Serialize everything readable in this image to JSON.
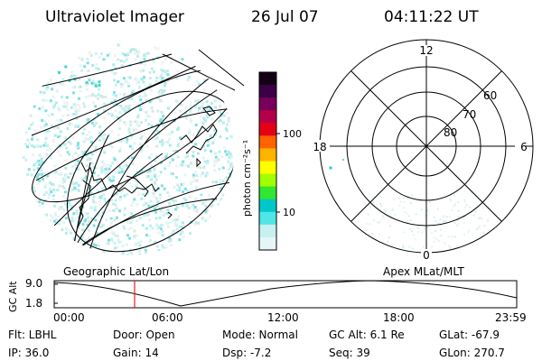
{
  "header": {
    "instrument": "Ultraviolet Imager",
    "date": "26 Jul 07",
    "time": "04:11:22 UT"
  },
  "colorbar": {
    "unit_label": "photon cm⁻²s⁻¹",
    "ticks": [
      "100",
      "10"
    ],
    "colors": [
      "#140014",
      "#3c0046",
      "#78005a",
      "#b4004b",
      "#e60014",
      "#ff6400",
      "#ffb400",
      "#ffff00",
      "#a0ff00",
      "#32e632",
      "#00c8c8",
      "#50e6e6",
      "#c8f0f0",
      "#e6f5f5"
    ]
  },
  "left_panel": {
    "label": "Geographic Lat/Lon"
  },
  "right_panel": {
    "label": "Apex MLat/MLT",
    "mlt_labels": {
      "top": "12",
      "bottom": "0",
      "left": "18",
      "right": "6"
    },
    "lat_labels": [
      "60",
      "70",
      "80"
    ]
  },
  "timeline": {
    "axis_label": "GC Alt",
    "y_ticks": [
      "9.0",
      "1.8"
    ],
    "x_ticks": [
      "00:00",
      "06:00",
      "12:00",
      "18:00",
      "23:59"
    ],
    "marker_time": "04:11"
  },
  "info": {
    "filter": "Flt: LBHL",
    "ip": "IP: 36.0",
    "door": "Door: Open",
    "gain": "Gain: 14",
    "mode": "Mode: Normal",
    "dsp": "Dsp:    -7.2",
    "gc_alt": "GC Alt: 6.1 Re",
    "seq": "Seq: 39",
    "glat": "GLat: -67.9",
    "glon": "GLon: 270.7"
  }
}
